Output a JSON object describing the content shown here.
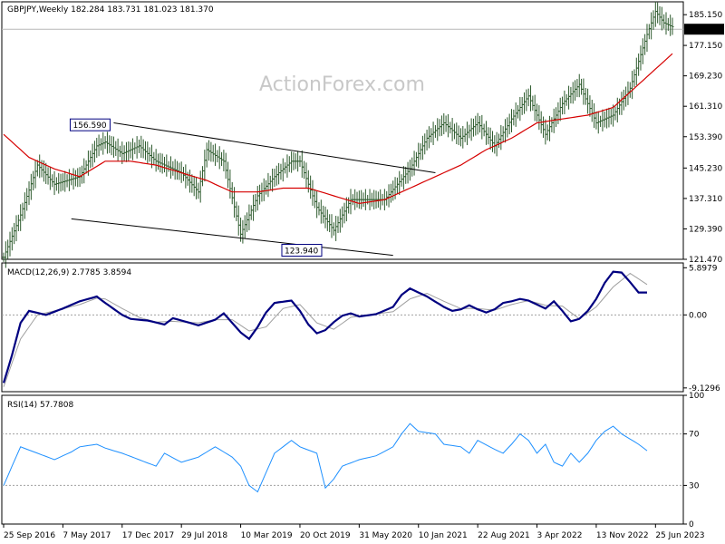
{
  "watermark": "ActionForex.com",
  "chart_data": {
    "type": "line",
    "symbol_header": "GBPJPY,Weekly  182.284 183.731 181.023 181.370",
    "x_tick_labels": [
      "25 Sep 2016",
      "7 May 2017",
      "17 Dec 2017",
      "29 Jul 2018",
      "10 Mar 2019",
      "20 Oct 2019",
      "31 May 2020",
      "10 Jan 2021",
      "22 Aug 2021",
      "3 Apr 2022",
      "13 Nov 2022",
      "25 Jun 2023"
    ],
    "x_keyframes": [
      0,
      7,
      14,
      21,
      28,
      35,
      42,
      49,
      56,
      63,
      70,
      77
    ],
    "price": {
      "ylim": [
        121.47,
        188.5
      ],
      "y_tick_labels": [
        "185.150",
        "177.150",
        "169.230",
        "161.310",
        "153.390",
        "145.230",
        "137.310",
        "129.390",
        "121.470"
      ],
      "current_price_label": "181.370",
      "current_price": 181.37,
      "series": [
        {
          "kind": "ohlc_bars",
          "keyframes": [
            [
              0,
              122
            ],
            [
              2,
              133
            ],
            [
              4,
              146
            ],
            [
              6,
              141
            ],
            [
              9,
              143
            ],
            [
              11,
              151
            ],
            [
              12,
              152
            ],
            [
              14,
              149
            ],
            [
              16,
              151
            ],
            [
              18,
              147
            ],
            [
              21,
              144
            ],
            [
              23,
              139
            ],
            [
              24,
              150
            ],
            [
              26,
              147
            ],
            [
              28,
              128
            ],
            [
              30,
              138
            ],
            [
              32,
              143
            ],
            [
              34,
              147
            ],
            [
              35,
              147
            ],
            [
              37,
              135
            ],
            [
              39,
              129
            ],
            [
              41,
              137
            ],
            [
              43,
              137
            ],
            [
              45,
              137
            ],
            [
              48,
              145
            ],
            [
              50,
              153
            ],
            [
              52,
              157
            ],
            [
              54,
              153
            ],
            [
              56,
              157
            ],
            [
              58,
              151
            ],
            [
              60,
              158
            ],
            [
              62,
              164
            ],
            [
              64,
              154
            ],
            [
              66,
              162
            ],
            [
              68,
              167
            ],
            [
              70,
              157
            ],
            [
              72,
              159
            ],
            [
              74,
              166
            ],
            [
              76,
              180
            ],
            [
              77,
              186
            ],
            [
              78,
              183
            ],
            [
              79,
              182
            ]
          ]
        },
        {
          "kind": "moving_average",
          "color": "#d60000",
          "keyframes": [
            [
              0,
              154
            ],
            [
              3,
              148
            ],
            [
              6,
              145
            ],
            [
              9,
              143
            ],
            [
              12,
              147
            ],
            [
              15,
              147
            ],
            [
              18,
              146
            ],
            [
              21,
              144
            ],
            [
              24,
              142
            ],
            [
              27,
              139
            ],
            [
              30,
              139
            ],
            [
              33,
              140
            ],
            [
              36,
              140
            ],
            [
              39,
              138
            ],
            [
              42,
              136
            ],
            [
              45,
              137
            ],
            [
              48,
              140
            ],
            [
              51,
              143
            ],
            [
              54,
              146
            ],
            [
              57,
              150
            ],
            [
              60,
              153
            ],
            [
              63,
              157
            ],
            [
              66,
              158
            ],
            [
              69,
              159
            ],
            [
              72,
              161
            ],
            [
              75,
              167
            ],
            [
              78,
              173
            ],
            [
              79,
              175
            ]
          ]
        }
      ],
      "annotations": [
        {
          "text": "156.590",
          "x": 13,
          "y": 156.59
        },
        {
          "text": "123.940",
          "x": 38,
          "y": 123.94
        }
      ],
      "channel_lines": [
        {
          "from": [
            13,
            157
          ],
          "to": [
            51,
            144
          ]
        },
        {
          "from": [
            8,
            132
          ],
          "to": [
            46,
            122.5
          ]
        }
      ]
    },
    "macd": {
      "header": "MACD(12,26,9) 2.7785 3.8594",
      "ylim": [
        -9.6,
        6.5
      ],
      "y_tick_labels": [
        "5.8979",
        "0.00",
        "-9.1296"
      ],
      "series": [
        {
          "name": "macd",
          "color": "#000080",
          "keyframes": [
            [
              0,
              -8.5
            ],
            [
              1,
              -5
            ],
            [
              2,
              -1
            ],
            [
              3,
              0.5
            ],
            [
              5,
              0
            ],
            [
              7,
              0.8
            ],
            [
              9,
              1.7
            ],
            [
              11,
              2.3
            ],
            [
              12,
              1.5
            ],
            [
              14,
              0
            ],
            [
              15,
              -0.5
            ],
            [
              17,
              -0.7
            ],
            [
              19,
              -1.2
            ],
            [
              20,
              -0.4
            ],
            [
              22,
              -1
            ],
            [
              23,
              -1.3
            ],
            [
              25,
              -0.6
            ],
            [
              26,
              0.2
            ],
            [
              27,
              -1
            ],
            [
              28,
              -2.2
            ],
            [
              29,
              -3
            ],
            [
              30,
              -1.5
            ],
            [
              31,
              0.3
            ],
            [
              32,
              1.5
            ],
            [
              34,
              1.8
            ],
            [
              35,
              0.5
            ],
            [
              36,
              -1.2
            ],
            [
              37,
              -2.3
            ],
            [
              38,
              -1.9
            ],
            [
              39,
              -0.9
            ],
            [
              40,
              -0.1
            ],
            [
              41,
              0.2
            ],
            [
              42,
              -0.2
            ],
            [
              44,
              0.1
            ],
            [
              46,
              1
            ],
            [
              47,
              2.5
            ],
            [
              48,
              3.3
            ],
            [
              49,
              2.8
            ],
            [
              50,
              2.3
            ],
            [
              52,
              1
            ],
            [
              53,
              0.5
            ],
            [
              54,
              0.7
            ],
            [
              55,
              1.2
            ],
            [
              56,
              0.7
            ],
            [
              57,
              0.3
            ],
            [
              58,
              0.7
            ],
            [
              59,
              1.5
            ],
            [
              60,
              1.7
            ],
            [
              61,
              2
            ],
            [
              62,
              1.8
            ],
            [
              63,
              1.3
            ],
            [
              64,
              0.8
            ],
            [
              65,
              1.7
            ],
            [
              66,
              0.5
            ],
            [
              67,
              -0.8
            ],
            [
              68,
              -0.5
            ],
            [
              69,
              0.5
            ],
            [
              70,
              2
            ],
            [
              71,
              4
            ],
            [
              72,
              5.4
            ],
            [
              73,
              5.3
            ],
            [
              74,
              4.1
            ],
            [
              75,
              2.8
            ],
            [
              76,
              2.8
            ]
          ]
        },
        {
          "name": "signal",
          "color": "#a0a0a0",
          "keyframes": [
            [
              0,
              -9
            ],
            [
              2,
              -3
            ],
            [
              4,
              0
            ],
            [
              6,
              0.5
            ],
            [
              9,
              1.3
            ],
            [
              11,
              2.1
            ],
            [
              12,
              2
            ],
            [
              14,
              0.8
            ],
            [
              16,
              -0.3
            ],
            [
              18,
              -0.9
            ],
            [
              20,
              -0.8
            ],
            [
              23,
              -1
            ],
            [
              25,
              -0.6
            ],
            [
              27,
              -0.6
            ],
            [
              29,
              -2
            ],
            [
              31,
              -1.5
            ],
            [
              33,
              0.8
            ],
            [
              35,
              1.3
            ],
            [
              37,
              -1
            ],
            [
              39,
              -1.8
            ],
            [
              41,
              -0.3
            ],
            [
              43,
              0
            ],
            [
              46,
              0.4
            ],
            [
              48,
              2
            ],
            [
              50,
              2.7
            ],
            [
              52,
              1.7
            ],
            [
              54,
              0.8
            ],
            [
              56,
              0.8
            ],
            [
              58,
              0.6
            ],
            [
              60,
              1.3
            ],
            [
              62,
              1.8
            ],
            [
              64,
              1.2
            ],
            [
              66,
              1.1
            ],
            [
              68,
              -0.5
            ],
            [
              70,
              1
            ],
            [
              72,
              3.5
            ],
            [
              74,
              5.2
            ],
            [
              76,
              3.8
            ]
          ]
        }
      ]
    },
    "rsi": {
      "header": "RSI(14) 57.7808",
      "ylim": [
        0,
        100
      ],
      "y_tick_labels": [
        "100",
        "70",
        "30",
        "0"
      ],
      "series": [
        {
          "name": "rsi",
          "color": "#1e90ff",
          "keyframes": [
            [
              0,
              30
            ],
            [
              1,
              45
            ],
            [
              2,
              60
            ],
            [
              4,
              55
            ],
            [
              6,
              50
            ],
            [
              8,
              56
            ],
            [
              9,
              60
            ],
            [
              11,
              62
            ],
            [
              12,
              59
            ],
            [
              14,
              55
            ],
            [
              16,
              50
            ],
            [
              18,
              45
            ],
            [
              19,
              55
            ],
            [
              21,
              48
            ],
            [
              23,
              52
            ],
            [
              25,
              60
            ],
            [
              27,
              52
            ],
            [
              28,
              45
            ],
            [
              29,
              30
            ],
            [
              30,
              25
            ],
            [
              31,
              40
            ],
            [
              32,
              55
            ],
            [
              34,
              65
            ],
            [
              35,
              60
            ],
            [
              37,
              55
            ],
            [
              38,
              28
            ],
            [
              39,
              35
            ],
            [
              40,
              45
            ],
            [
              42,
              50
            ],
            [
              44,
              53
            ],
            [
              46,
              60
            ],
            [
              47,
              70
            ],
            [
              48,
              78
            ],
            [
              49,
              72
            ],
            [
              51,
              70
            ],
            [
              52,
              62
            ],
            [
              54,
              60
            ],
            [
              55,
              55
            ],
            [
              56,
              65
            ],
            [
              58,
              58
            ],
            [
              59,
              55
            ],
            [
              60,
              62
            ],
            [
              61,
              70
            ],
            [
              62,
              65
            ],
            [
              63,
              55
            ],
            [
              64,
              62
            ],
            [
              65,
              48
            ],
            [
              66,
              45
            ],
            [
              67,
              55
            ],
            [
              68,
              48
            ],
            [
              69,
              55
            ],
            [
              70,
              65
            ],
            [
              71,
              72
            ],
            [
              72,
              76
            ],
            [
              73,
              70
            ],
            [
              74,
              66
            ],
            [
              75,
              62
            ],
            [
              76,
              57
            ]
          ]
        }
      ]
    }
  }
}
